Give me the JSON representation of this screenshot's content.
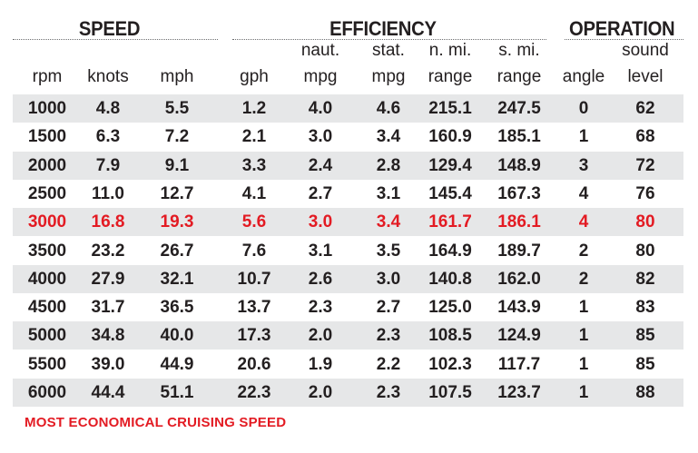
{
  "groups": {
    "speed": "SPEED",
    "efficiency": "EFFICIENCY",
    "operation": "OPERATION"
  },
  "headers": {
    "rpm": [
      "",
      "rpm"
    ],
    "knots": [
      "",
      "knots"
    ],
    "mph": [
      "",
      "mph"
    ],
    "gph": [
      "",
      "gph"
    ],
    "naut_mpg": [
      "naut.",
      "mpg"
    ],
    "stat_mpg": [
      "stat.",
      "mpg"
    ],
    "nmi_range": [
      "n. mi.",
      "range"
    ],
    "smi_range": [
      "s. mi.",
      "range"
    ],
    "angle": [
      "",
      "angle"
    ],
    "sound_level": [
      "sound",
      "level"
    ]
  },
  "rows": [
    [
      "1000",
      "4.8",
      "5.5",
      "1.2",
      "4.0",
      "4.6",
      "215.1",
      "247.5",
      "0",
      "62"
    ],
    [
      "1500",
      "6.3",
      "7.2",
      "2.1",
      "3.0",
      "3.4",
      "160.9",
      "185.1",
      "1",
      "68"
    ],
    [
      "2000",
      "7.9",
      "9.1",
      "3.3",
      "2.4",
      "2.8",
      "129.4",
      "148.9",
      "3",
      "72"
    ],
    [
      "2500",
      "11.0",
      "12.7",
      "4.1",
      "2.7",
      "3.1",
      "145.4",
      "167.3",
      "4",
      "76"
    ],
    [
      "3000",
      "16.8",
      "19.3",
      "5.6",
      "3.0",
      "3.4",
      "161.7",
      "186.1",
      "4",
      "80"
    ],
    [
      "3500",
      "23.2",
      "26.7",
      "7.6",
      "3.1",
      "3.5",
      "164.9",
      "189.7",
      "2",
      "80"
    ],
    [
      "4000",
      "27.9",
      "32.1",
      "10.7",
      "2.6",
      "3.0",
      "140.8",
      "162.0",
      "2",
      "82"
    ],
    [
      "4500",
      "31.7",
      "36.5",
      "13.7",
      "2.3",
      "2.7",
      "125.0",
      "143.9",
      "1",
      "83"
    ],
    [
      "5000",
      "34.8",
      "40.0",
      "17.3",
      "2.0",
      "2.3",
      "108.5",
      "124.9",
      "1",
      "85"
    ],
    [
      "5500",
      "39.0",
      "44.9",
      "20.6",
      "1.9",
      "2.2",
      "102.3",
      "117.7",
      "1",
      "85"
    ],
    [
      "6000",
      "44.4",
      "51.1",
      "22.3",
      "2.0",
      "2.3",
      "107.5",
      "123.7",
      "1",
      "88"
    ]
  ],
  "highlight_row_index": 4,
  "highlight_color": "#e31b23",
  "shade_color": "#e6e7e8",
  "footnote": "MOST ECONOMICAL CRUISING SPEED"
}
